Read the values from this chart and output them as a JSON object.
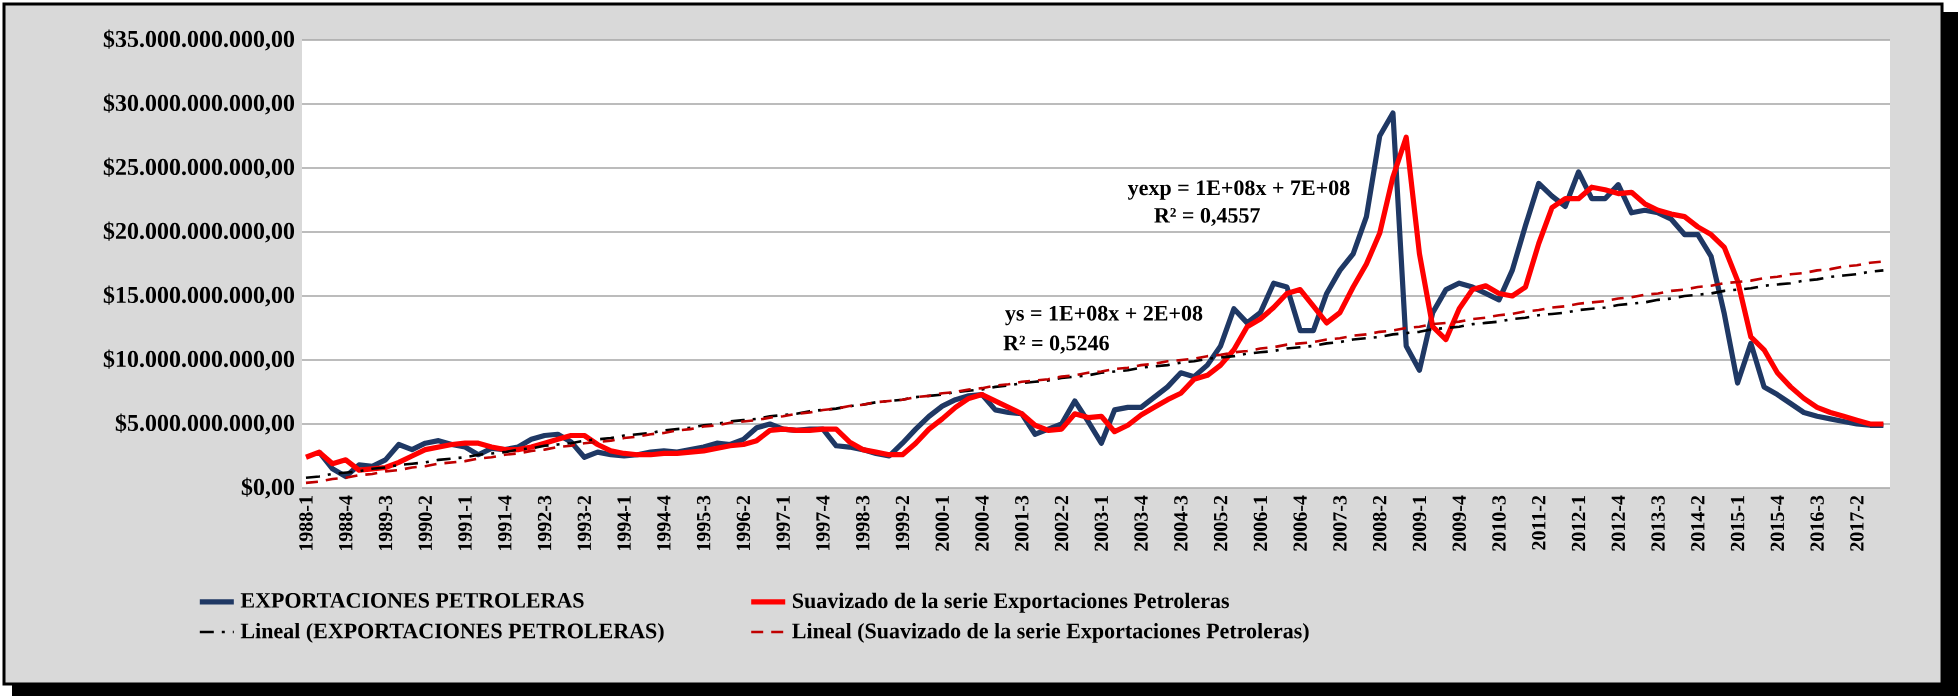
{
  "chart_data": {
    "type": "line",
    "categories": [
      "1988-1",
      null,
      null,
      "1988-4",
      null,
      null,
      "1989-3",
      null,
      null,
      "1990-2",
      null,
      null,
      "1991-1",
      null,
      null,
      "1991-4",
      null,
      null,
      "1992-3",
      null,
      null,
      "1993-2",
      null,
      null,
      "1994-1",
      null,
      null,
      "1994-4",
      null,
      null,
      "1995-3",
      null,
      null,
      "1996-2",
      null,
      null,
      "1997-1",
      null,
      null,
      "1997-4",
      null,
      null,
      "1998-3",
      null,
      null,
      "1999-2",
      null,
      null,
      "2000-1",
      null,
      null,
      "2000-4",
      null,
      null,
      "2001-3",
      null,
      null,
      "2002-2",
      null,
      null,
      "2003-1",
      null,
      null,
      "2003-4",
      null,
      null,
      "2004-3",
      null,
      null,
      "2005-2",
      null,
      null,
      "2006-1",
      null,
      null,
      "2006-4",
      null,
      null,
      "2007-3",
      null,
      null,
      "2008-2",
      null,
      null,
      "2009-1",
      null,
      null,
      "2009-4",
      null,
      null,
      "2010-3",
      null,
      null,
      "2011-2",
      null,
      null,
      "2012-1",
      null,
      null,
      "2012-4",
      null,
      null,
      "2013-3",
      null,
      null,
      "2014-2",
      null,
      null,
      "2015-1",
      null,
      null,
      "2015-4",
      null,
      null,
      "2016-3",
      null,
      null,
      "2017-2",
      null,
      null
    ],
    "series": [
      {
        "name": "EXPORTACIONES PETROLERAS",
        "color": "#1f3864",
        "values": [
          null,
          2800000000.0,
          1500000000.0,
          900000000.0,
          1800000000.0,
          1700000000.0,
          2200000000.0,
          3400000000.0,
          3000000000.0,
          3500000000.0,
          3700000000.0,
          3400000000.0,
          3200000000.0,
          2600000000.0,
          3100000000.0,
          3000000000.0,
          3200000000.0,
          3800000000.0,
          4100000000.0,
          4200000000.0,
          3600000000.0,
          2400000000.0,
          2800000000.0,
          2600000000.0,
          2500000000.0,
          2600000000.0,
          2800000000.0,
          2900000000.0,
          2800000000.0,
          3000000000.0,
          3200000000.0,
          3500000000.0,
          3400000000.0,
          3800000000.0,
          4700000000.0,
          5000000000.0,
          4600000000.0,
          4500000000.0,
          4600000000.0,
          4600000000.0,
          3300000000.0,
          3200000000.0,
          3000000000.0,
          2700000000.0,
          2500000000.0,
          3500000000.0,
          4600000000.0,
          5600000000.0,
          6400000000.0,
          6900000000.0,
          7200000000.0,
          7300000000.0,
          6100000000.0,
          5900000000.0,
          5800000000.0,
          4200000000.0,
          4600000000.0,
          5000000000.0,
          6800000000.0,
          5200000000.0,
          3500000000.0,
          6100000000.0,
          6300000000.0,
          6300000000.0,
          7100000000.0,
          7900000000.0,
          9000000000.0,
          8700000000.0,
          9600000000.0,
          11100000000.0,
          14000000000.0,
          12900000000.0,
          13700000000.0,
          16000000000.0,
          15700000000.0,
          12300000000.0,
          12300000000.0,
          15200000000.0,
          17000000000.0,
          18300000000.0,
          21200000000.0,
          27500000000.0,
          29300000000.0,
          11100000000.0,
          9200000000.0,
          13700000000.0,
          15500000000.0,
          16000000000.0,
          15700000000.0,
          15200000000.0,
          14700000000.0,
          17000000000.0,
          20500000000.0,
          23800000000.0,
          22800000000.0,
          22000000000.0,
          24700000000.0,
          22600000000.0,
          22600000000.0,
          23700000000.0,
          21500000000.0,
          21700000000.0,
          21500000000.0,
          21000000000.0,
          19800000000.0,
          19800000000.0,
          18100000000.0,
          13600000000.0,
          8200000000.0,
          11300000000.0,
          7900000000.0,
          7300000000.0,
          6600000000.0,
          5900000000.0,
          5600000000.0,
          5400000000.0,
          5200000000.0,
          5000000000.0,
          4900000000.0,
          4900000000.0
        ]
      },
      {
        "name": "Suavizado de la serie Exportaciones Petroleras",
        "color": "#ff0000",
        "values": [
          2400000000.0,
          2800000000.0,
          1900000000.0,
          2200000000.0,
          1400000000.0,
          1500000000.0,
          1600000000.0,
          2000000000.0,
          2500000000.0,
          3000000000.0,
          3200000000.0,
          3400000000.0,
          3500000000.0,
          3500000000.0,
          3200000000.0,
          3000000000.0,
          3000000000.0,
          3200000000.0,
          3500000000.0,
          3800000000.0,
          4100000000.0,
          4100000000.0,
          3400000000.0,
          2900000000.0,
          2700000000.0,
          2600000000.0,
          2600000000.0,
          2700000000.0,
          2700000000.0,
          2800000000.0,
          2900000000.0,
          3100000000.0,
          3300000000.0,
          3400000000.0,
          3700000000.0,
          4500000000.0,
          4600000000.0,
          4500000000.0,
          4500000000.0,
          4600000000.0,
          4600000000.0,
          3600000000.0,
          3000000000.0,
          2800000000.0,
          2600000000.0,
          2600000000.0,
          3500000000.0,
          4600000000.0,
          5400000000.0,
          6300000000.0,
          7000000000.0,
          7300000000.0,
          6800000000.0,
          6300000000.0,
          5800000000.0,
          4900000000.0,
          4500000000.0,
          4600000000.0,
          5800000000.0,
          5500000000.0,
          5600000000.0,
          4400000000.0,
          4900000000.0,
          5700000000.0,
          6300000000.0,
          6900000000.0,
          7400000000.0,
          8500000000.0,
          8800000000.0,
          9600000000.0,
          10800000000.0,
          12600000000.0,
          13200000000.0,
          14100000000.0,
          15200000000.0,
          15500000000.0,
          14200000000.0,
          12900000000.0,
          13700000000.0,
          15700000000.0,
          17500000000.0,
          19900000000.0,
          24300000000.0,
          27400000000.0,
          18300000000.0,
          12600000000.0,
          11600000000.0,
          14000000000.0,
          15500000000.0,
          15800000000.0,
          15200000000.0,
          15000000000.0,
          15700000000.0,
          19100000000.0,
          21900000000.0,
          22600000000.0,
          22600000000.0,
          23500000000.0,
          23300000000.0,
          23000000000.0,
          23100000000.0,
          22200000000.0,
          21700000000.0,
          21400000000.0,
          21200000000.0,
          20400000000.0,
          19800000000.0,
          18800000000.0,
          16200000000.0,
          11800000000.0,
          10800000000.0,
          9000000000.0,
          7900000000.0,
          7000000000.0,
          6300000000.0,
          5900000000.0,
          5600000000.0,
          5300000000.0,
          5000000000.0,
          5000000000.0
        ]
      },
      {
        "name": "Lineal (EXPORTACIONES PETROLERAS)",
        "color": "#000000",
        "line_style": "dashdot",
        "values": [
          800000000.0,
          900000000.0,
          1100000000.0,
          1200000000.0,
          1300000000.0,
          1500000000.0,
          1600000000.0,
          1800000000.0,
          1900000000.0,
          2000000000.0,
          2200000000.0,
          2300000000.0,
          2400000000.0,
          2600000000.0,
          2700000000.0,
          2800000000.0,
          3000000000.0,
          3100000000.0,
          3300000000.0,
          3400000000.0,
          3500000000.0,
          3700000000.0,
          3800000000.0,
          3900000000.0,
          4100000000.0,
          4200000000.0,
          4300000000.0,
          4500000000.0,
          4600000000.0,
          4700000000.0,
          4900000000.0,
          5000000000.0,
          5200000000.0,
          5300000000.0,
          5400000000.0,
          5600000000.0,
          5700000000.0,
          5800000000.0,
          6000000000.0,
          6100000000.0,
          6200000000.0,
          6400000000.0,
          6500000000.0,
          6700000000.0,
          6800000000.0,
          6900000000.0,
          7100000000.0,
          7200000000.0,
          7300000000.0,
          7500000000.0,
          7600000000.0,
          7700000000.0,
          7900000000.0,
          8000000000.0,
          8200000000.0,
          8300000000.0,
          8400000000.0,
          8600000000.0,
          8700000000.0,
          8800000000.0,
          9000000000.0,
          9100000000.0,
          9200000000.0,
          9400000000.0,
          9500000000.0,
          9600000000.0,
          9800000000.0,
          9900000000.0,
          10100000000.0,
          10200000000.0,
          10300000000.0,
          10500000000.0,
          10600000000.0,
          10700000000.0,
          10900000000.0,
          11000000000.0,
          11100000000.0,
          11300000000.0,
          11400000000.0,
          11600000000.0,
          11700000000.0,
          11800000000.0,
          12000000000.0,
          12100000000.0,
          12200000000.0,
          12400000000.0,
          12500000000.0,
          12600000000.0,
          12800000000.0,
          12900000000.0,
          13000000000.0,
          13200000000.0,
          13300000000.0,
          13500000000.0,
          13600000000.0,
          13700000000.0,
          13900000000.0,
          14000000000.0,
          14100000000.0,
          14300000000.0,
          14400000000.0,
          14500000000.0,
          14700000000.0,
          14800000000.0,
          15000000000.0,
          15100000000.0,
          15200000000.0,
          15400000000.0,
          15500000000.0,
          15600000000.0,
          15800000000.0,
          15900000000.0,
          16000000000.0,
          16200000000.0,
          16300000000.0,
          16500000000.0,
          16600000000.0,
          16700000000.0,
          16900000000.0,
          17000000000.0
        ]
      },
      {
        "name": "Lineal (Suavizado de la serie Exportaciones Petroleras)",
        "color": "#c00000",
        "line_style": "dashed",
        "values": [
          400000000.0,
          500000000.0,
          700000000.0,
          800000000.0,
          1000000000.0,
          1100000000.0,
          1300000000.0,
          1400000000.0,
          1600000000.0,
          1700000000.0,
          1900000000.0,
          2000000000.0,
          2100000000.0,
          2300000000.0,
          2400000000.0,
          2600000000.0,
          2700000000.0,
          2900000000.0,
          3000000000.0,
          3200000000.0,
          3300000000.0,
          3500000000.0,
          3600000000.0,
          3700000000.0,
          3900000000.0,
          4000000000.0,
          4200000000.0,
          4300000000.0,
          4500000000.0,
          4600000000.0,
          4800000000.0,
          4900000000.0,
          5100000000.0,
          5200000000.0,
          5300000000.0,
          5500000000.0,
          5600000000.0,
          5800000000.0,
          5900000000.0,
          6100000000.0,
          6200000000.0,
          6400000000.0,
          6500000000.0,
          6700000000.0,
          6800000000.0,
          6900000000.0,
          7100000000.0,
          7200000000.0,
          7400000000.0,
          7500000000.0,
          7700000000.0,
          7800000000.0,
          8000000000.0,
          8100000000.0,
          8300000000.0,
          8400000000.0,
          8500000000.0,
          8700000000.0,
          8800000000.0,
          9000000000.0,
          9100000000.0,
          9300000000.0,
          9400000000.0,
          9600000000.0,
          9700000000.0,
          9900000000.0,
          10000000000.0,
          10100000000.0,
          10300000000.0,
          10400000000.0,
          10600000000.0,
          10700000000.0,
          10900000000.0,
          11000000000.0,
          11200000000.0,
          11300000000.0,
          11400000000.0,
          11600000000.0,
          11700000000.0,
          11900000000.0,
          12000000000.0,
          12200000000.0,
          12300000000.0,
          12500000000.0,
          12600000000.0,
          12800000000.0,
          12900000000.0,
          13000000000.0,
          13200000000.0,
          13300000000.0,
          13500000000.0,
          13600000000.0,
          13800000000.0,
          13900000000.0,
          14100000000.0,
          14200000000.0,
          14400000000.0,
          14500000000.0,
          14600000000.0,
          14800000000.0,
          14900000000.0,
          15100000000.0,
          15200000000.0,
          15400000000.0,
          15500000000.0,
          15700000000.0,
          15800000000.0,
          16000000000.0,
          16100000000.0,
          16200000000.0,
          16400000000.0,
          16500000000.0,
          16700000000.0,
          16800000000.0,
          17000000000.0,
          17100000000.0,
          17300000000.0,
          17400000000.0,
          17600000000.0,
          17700000000.0
        ]
      }
    ],
    "ylim": [
      0,
      35000000000.0
    ],
    "yticks": [
      {
        "value": 0,
        "label": "$0,00"
      },
      {
        "value": 5000000000.0,
        "label": "$5.000.000.000,00"
      },
      {
        "value": 10000000000.0,
        "label": "$10.000.000.000,00"
      },
      {
        "value": 15000000000.0,
        "label": "$15.000.000.000,00"
      },
      {
        "value": 20000000000.0,
        "label": "$20.000.000.000,00"
      },
      {
        "value": 25000000000.0,
        "label": "$25.000.000.000,00"
      },
      {
        "value": 30000000000.0,
        "label": "$30.000.000.000,00"
      },
      {
        "value": 35000000000.0,
        "label": "$35.000.000.000,00"
      }
    ],
    "grid": "y",
    "legend": "bottom",
    "annotations": [
      "yexp = 1E+08x + 7E+08",
      "R² = 0,4557",
      "ys = 1E+08x + 2E+08",
      "R² = 0,5246"
    ]
  }
}
